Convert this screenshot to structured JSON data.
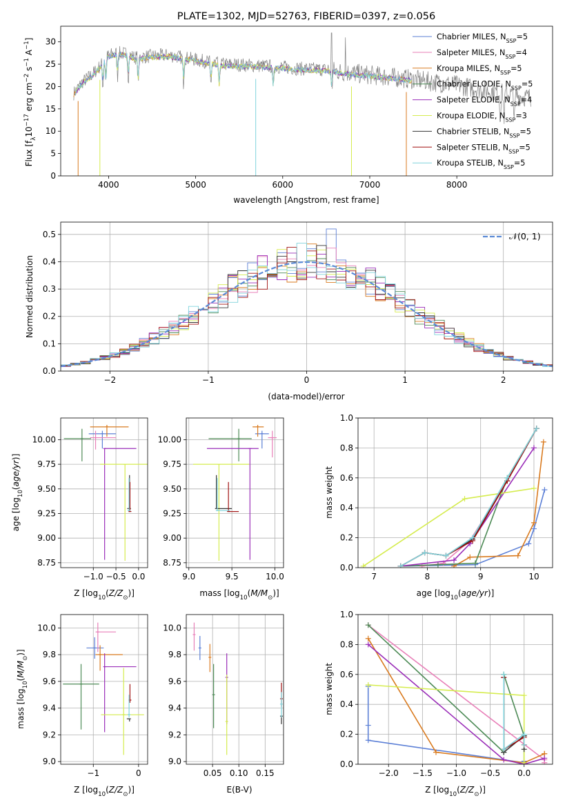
{
  "colors": {
    "Chabrier MILES": "#5b7fd6",
    "Salpeter MILES": "#e87fb8",
    "Kroupa MILES": "#d97a1e",
    "Chabrier ELODIE": "#4c8a55",
    "Salpeter ELODIE": "#9a2db8",
    "Kroupa ELODIE": "#d5ec4d",
    "Chabrier STELIB": "#333333",
    "Salpeter STELIB": "#a01010",
    "Kroupa STELIB": "#7fd3dc",
    "gaussian": "#5b8ad6"
  },
  "chart_data": [
    {
      "id": "spectrum",
      "type": "line",
      "title": "PLATE=1302, MJD=52763, FIBERID=0397, z=0.056",
      "xlabel": "wavelength [Angstrom, rest frame]",
      "ylabel": "Flux [f_λ10^-17 erg cm^-2 s^-1 A^-1]",
      "xlim": [
        3450,
        9100
      ],
      "ylim": [
        0,
        33.5
      ],
      "xticks": [
        4000,
        5000,
        6000,
        7000,
        8000
      ],
      "yticks": [
        0,
        5,
        10,
        15,
        20,
        25,
        30
      ],
      "grid": false,
      "legend_position": "upper-right",
      "legend": [
        {
          "name": "Chabrier MILES",
          "nssp": "5"
        },
        {
          "name": "Salpeter MILES",
          "nssp": "4"
        },
        {
          "name": "Kroupa MILES",
          "nssp": "5"
        },
        {
          "name": "Chabrier ELODIE",
          "nssp": "5"
        },
        {
          "name": "Salpeter ELODIE",
          "nssp": "4"
        },
        {
          "name": "Kroupa ELODIE",
          "nssp": "3"
        },
        {
          "name": "Chabrier STELIB",
          "nssp": "5"
        },
        {
          "name": "Salpeter STELIB",
          "nssp": "5"
        },
        {
          "name": "Kroupa STELIB",
          "nssp": "5"
        }
      ],
      "continuum": {
        "x": [
          3600,
          3700,
          3800,
          3900,
          4000,
          4100,
          4200,
          4300,
          4500,
          4700,
          5000,
          5300,
          5600,
          5900,
          6200,
          6500,
          6700,
          7000,
          7300,
          7500,
          8000,
          8500,
          8800
        ],
        "y": [
          18.5,
          21.0,
          22.5,
          24.5,
          27.0,
          27.5,
          27.3,
          26.5,
          26.8,
          27.0,
          26.0,
          25.0,
          24.8,
          24.5,
          24.0,
          23.8,
          23.2,
          22.6,
          22.0,
          21.6,
          20.3,
          18.6,
          17.6
        ]
      },
      "dropouts": [
        {
          "series": "Kroupa MILES",
          "x": 3650
        },
        {
          "series": "Kroupa ELODIE",
          "x": 3900
        },
        {
          "series": "Kroupa STELIB",
          "x": 5690
        },
        {
          "series": "Kroupa ELODIE",
          "x": 6790
        },
        {
          "series": "Kroupa MILES",
          "x": 7420
        }
      ]
    },
    {
      "id": "residuals",
      "type": "histogram",
      "xlabel": "(data-model)/error",
      "ylabel": "Normed distribution",
      "xlim": [
        -2.5,
        2.5
      ],
      "ylim": [
        0,
        0.545
      ],
      "xticks": [
        -2,
        -1,
        0,
        1,
        2
      ],
      "yticks": [
        0.0,
        0.1,
        0.2,
        0.3,
        0.4,
        0.5
      ],
      "grid": true,
      "legend_position": "upper-right",
      "legend": [
        {
          "name": "𝒩(0, 1)",
          "style": "dashed"
        }
      ],
      "bin_width": 0.1,
      "peak_bin": 0.25,
      "peak_value": 0.52
    },
    {
      "id": "age-vs-Z",
      "type": "errorbar",
      "xlabel": "Z [log10(Z/Z⊙)]",
      "ylabel": "age  [log10(age/yr)]",
      "xlim": [
        -1.72,
        0.2
      ],
      "ylim": [
        8.7,
        10.22
      ],
      "xticks": [
        -1,
        -0.5,
        0
      ],
      "yticks": [
        8.75,
        9.0,
        9.25,
        9.5,
        9.75,
        10.0
      ],
      "grid": true,
      "points": [
        {
          "series": "Chabrier MILES",
          "x": -0.8,
          "xerr": [
            0.3,
            0.3
          ],
          "y": 10.06,
          "yerr": [
            0.15,
            0.03
          ]
        },
        {
          "series": "Salpeter MILES",
          "x": -0.95,
          "xerr": [
            0.12,
            0.45
          ],
          "y": 10.02,
          "yerr": [
            0.12,
            0.07
          ]
        },
        {
          "series": "Kroupa MILES",
          "x": -0.7,
          "xerr": [
            0.37,
            0.48
          ],
          "y": 10.13,
          "yerr": [
            0.1,
            0.02
          ]
        },
        {
          "series": "Chabrier ELODIE",
          "x": -1.25,
          "xerr": [
            0.4,
            0.2
          ],
          "y": 10.01,
          "yerr": [
            0.23,
            0.1
          ]
        },
        {
          "series": "Salpeter ELODIE",
          "x": -0.75,
          "xerr": [
            0.0,
            0.7
          ],
          "y": 9.91,
          "yerr": [
            1.13,
            0.0
          ]
        },
        {
          "series": "Kroupa ELODIE",
          "x": -0.3,
          "xerr": [
            0.55,
            0.5
          ],
          "y": 9.75,
          "yerr": [
            0.98,
            0.0
          ]
        },
        {
          "series": "Chabrier STELIB",
          "x": -0.2,
          "xerr": [
            0.05,
            0.0
          ],
          "y": 9.3,
          "yerr": [
            0.0,
            0.34
          ]
        },
        {
          "series": "Salpeter STELIB",
          "x": -0.19,
          "xerr": [
            0.03,
            0.0
          ],
          "y": 9.27,
          "yerr": [
            0.0,
            0.3
          ]
        },
        {
          "series": "Kroupa STELIB",
          "x": -0.21,
          "xerr": [
            0.03,
            0.0
          ],
          "y": 9.28,
          "yerr": [
            0.0,
            0.33
          ]
        }
      ]
    },
    {
      "id": "age-vs-mass",
      "type": "errorbar",
      "xlabel": "mass [log10(M/M⊙)]",
      "ylabel": "",
      "xlim": [
        8.97,
        10.1
      ],
      "ylim": [
        8.7,
        10.22
      ],
      "xticks": [
        9.0,
        9.5,
        10.0
      ],
      "yticks": [
        8.75,
        9.0,
        9.25,
        9.5,
        9.75,
        10.0
      ],
      "grid": true,
      "points": [
        {
          "series": "Chabrier MILES",
          "x": 9.85,
          "xerr": [
            0.08,
            0.08
          ],
          "y": 10.06,
          "yerr": [
            0.15,
            0.03
          ]
        },
        {
          "series": "Salpeter MILES",
          "x": 9.97,
          "xerr": [
            0.05,
            0.05
          ],
          "y": 10.02,
          "yerr": [
            0.2,
            0.07
          ]
        },
        {
          "series": "Kroupa MILES",
          "x": 9.8,
          "xerr": [
            0.06,
            0.07
          ],
          "y": 10.13,
          "yerr": [
            0.1,
            0.02
          ]
        },
        {
          "series": "Chabrier ELODIE",
          "x": 9.58,
          "xerr": [
            0.35,
            0.15
          ],
          "y": 10.01,
          "yerr": [
            0.23,
            0.1
          ]
        },
        {
          "series": "Salpeter ELODIE",
          "x": 9.71,
          "xerr": [
            0.5,
            0.1
          ],
          "y": 9.91,
          "yerr": [
            1.13,
            0.0
          ]
        },
        {
          "series": "Kroupa ELODIE",
          "x": 9.35,
          "xerr": [
            0.3,
            0.35
          ],
          "y": 9.75,
          "yerr": [
            0.98,
            0.0
          ]
        },
        {
          "series": "Chabrier STELIB",
          "x": 9.32,
          "xerr": [
            0.0,
            0.18
          ],
          "y": 9.3,
          "yerr": [
            0.0,
            0.34
          ]
        },
        {
          "series": "Salpeter STELIB",
          "x": 9.46,
          "xerr": [
            0.0,
            0.12
          ],
          "y": 9.27,
          "yerr": [
            0.0,
            0.3
          ]
        },
        {
          "series": "Kroupa STELIB",
          "x": 9.33,
          "xerr": [
            0.0,
            0.15
          ],
          "y": 9.28,
          "yerr": [
            0.0,
            0.33
          ]
        }
      ]
    },
    {
      "id": "weight-vs-age",
      "type": "line",
      "xlabel": "age  [log10(age/yr)]",
      "ylabel": "mass weight",
      "xlim": [
        6.7,
        10.35
      ],
      "ylim": [
        0,
        1.0
      ],
      "xticks": [
        7,
        8,
        9,
        10
      ],
      "yticks": [
        0.0,
        0.2,
        0.4,
        0.6,
        0.8,
        1.0
      ],
      "grid": true,
      "series": [
        {
          "name": "Chabrier MILES",
          "x": [
            7.5,
            8.9,
            9.9,
            10.0,
            10.2
          ],
          "y": [
            0.01,
            0.02,
            0.16,
            0.26,
            0.52
          ]
        },
        {
          "name": "Salpeter MILES",
          "x": [
            7.9,
            8.3,
            8.8,
            9.5,
            10.05
          ],
          "y": [
            0.01,
            0.03,
            0.18,
            0.58,
            0.93
          ]
        },
        {
          "name": "Kroupa MILES",
          "x": [
            8.5,
            8.8,
            9.7,
            10.0,
            10.18
          ],
          "y": [
            0.01,
            0.07,
            0.08,
            0.3,
            0.84
          ]
        },
        {
          "name": "Chabrier ELODIE",
          "x": [
            7.5,
            8.2,
            8.9,
            9.5,
            10.05
          ],
          "y": [
            0.01,
            0.02,
            0.03,
            0.6,
            0.93
          ]
        },
        {
          "name": "Salpeter ELODIE",
          "x": [
            7.5,
            8.5,
            8.8,
            10.0
          ],
          "y": [
            0.01,
            0.05,
            0.16,
            0.8
          ]
        },
        {
          "name": "Kroupa ELODIE",
          "x": [
            6.8,
            8.7,
            10.0
          ],
          "y": [
            0.01,
            0.46,
            0.53
          ]
        },
        {
          "name": "Chabrier STELIB",
          "x": [
            7.5,
            7.95,
            8.35,
            8.85,
            9.5,
            10.05
          ],
          "y": [
            0.01,
            0.1,
            0.08,
            0.19,
            0.58,
            0.93
          ]
        },
        {
          "name": "Salpeter STELIB",
          "x": [
            7.5,
            7.95,
            8.35,
            8.85,
            9.5,
            10.05
          ],
          "y": [
            0.01,
            0.1,
            0.08,
            0.18,
            0.58,
            0.93
          ]
        },
        {
          "name": "Kroupa STELIB",
          "x": [
            7.5,
            7.95,
            8.35,
            8.85,
            9.5,
            10.05
          ],
          "y": [
            0.01,
            0.1,
            0.08,
            0.2,
            0.6,
            0.93
          ]
        }
      ]
    },
    {
      "id": "mass-vs-Z",
      "type": "errorbar",
      "xlabel": "Z [log10(Z/Z⊙)]",
      "ylabel": "mass [log10(M/M⊙)]",
      "xlim": [
        -1.72,
        0.2
      ],
      "ylim": [
        8.98,
        10.1
      ],
      "xticks": [
        -1,
        0
      ],
      "yticks": [
        9.0,
        9.2,
        9.4,
        9.6,
        9.8,
        10.0
      ],
      "grid": true,
      "points": [
        {
          "series": "Chabrier MILES",
          "x": -0.97,
          "xerr": [
            0.18,
            0.2
          ],
          "y": 9.85,
          "yerr": [
            0.08,
            0.08
          ]
        },
        {
          "series": "Salpeter MILES",
          "x": -0.9,
          "xerr": [
            0.05,
            0.4
          ],
          "y": 9.97,
          "yerr": [
            0.15,
            0.07
          ]
        },
        {
          "series": "Kroupa MILES",
          "x": -0.85,
          "xerr": [
            0.1,
            0.5
          ],
          "y": 9.8,
          "yerr": [
            0.12,
            0.07
          ]
        },
        {
          "series": "Chabrier ELODIE",
          "x": -1.27,
          "xerr": [
            0.4,
            0.4
          ],
          "y": 9.58,
          "yerr": [
            0.34,
            0.15
          ]
        },
        {
          "series": "Salpeter ELODIE",
          "x": -0.75,
          "xerr": [
            0.0,
            0.7
          ],
          "y": 9.71,
          "yerr": [
            0.49,
            0.1
          ]
        },
        {
          "series": "Kroupa ELODIE",
          "x": -0.33,
          "xerr": [
            0.5,
            0.45
          ],
          "y": 9.35,
          "yerr": [
            0.3,
            0.35
          ]
        },
        {
          "series": "Chabrier STELIB",
          "x": -0.2,
          "xerr": [
            0.06,
            0.0
          ],
          "y": 9.32,
          "yerr": [
            0.02,
            0.0
          ]
        },
        {
          "series": "Salpeter STELIB",
          "x": -0.19,
          "xerr": [
            0.03,
            0.0
          ],
          "y": 9.46,
          "yerr": [
            0.02,
            0.12
          ]
        },
        {
          "series": "Kroupa STELIB",
          "x": -0.21,
          "xerr": [
            0.03,
            0.0
          ],
          "y": 9.35,
          "yerr": [
            0.02,
            0.15
          ]
        }
      ]
    },
    {
      "id": "mass-vs-ebv",
      "type": "errorbar",
      "xlabel": "E(B-V)",
      "ylabel": "",
      "xlim": [
        0.0,
        0.185
      ],
      "ylim": [
        8.98,
        10.1
      ],
      "xticks": [
        0.05,
        0.1,
        0.15
      ],
      "yticks": [
        9.0,
        9.2,
        9.4,
        9.6,
        9.8,
        10.0
      ],
      "grid": true,
      "points": [
        {
          "series": "Chabrier MILES",
          "x": 0.026,
          "xerr": [
            0,
            0
          ],
          "y": 9.85,
          "yerr": [
            0.09,
            0.09
          ]
        },
        {
          "series": "Salpeter MILES",
          "x": 0.015,
          "xerr": [
            0,
            0
          ],
          "y": 9.95,
          "yerr": [
            0.12,
            0.09
          ]
        },
        {
          "series": "Kroupa MILES",
          "x": 0.045,
          "xerr": [
            0,
            0
          ],
          "y": 9.78,
          "yerr": [
            0.11,
            0.1
          ]
        },
        {
          "series": "Chabrier ELODIE",
          "x": 0.052,
          "xerr": [
            0,
            0
          ],
          "y": 9.5,
          "yerr": [
            0.25,
            0.23
          ]
        },
        {
          "series": "Salpeter ELODIE",
          "x": 0.077,
          "xerr": [
            0,
            0
          ],
          "y": 9.63,
          "yerr": [
            0.35,
            0.18
          ]
        },
        {
          "series": "Kroupa ELODIE",
          "x": 0.077,
          "xerr": [
            0,
            0
          ],
          "y": 9.3,
          "yerr": [
            0.25,
            0.35
          ]
        },
        {
          "series": "Chabrier STELIB",
          "x": 0.181,
          "xerr": [
            0,
            0
          ],
          "y": 9.34,
          "yerr": [
            0.06,
            0.0
          ]
        },
        {
          "series": "Salpeter STELIB",
          "x": 0.181,
          "xerr": [
            0,
            0
          ],
          "y": 9.47,
          "yerr": [
            0.06,
            0.12
          ]
        },
        {
          "series": "Kroupa STELIB",
          "x": 0.181,
          "xerr": [
            0,
            0
          ],
          "y": 9.43,
          "yerr": [
            0.1,
            0.09
          ]
        }
      ]
    },
    {
      "id": "weight-vs-Z",
      "type": "line",
      "xlabel": "Z [log10(Z/Z⊙)]",
      "ylabel": "mass weight",
      "xlim": [
        -2.45,
        0.42
      ],
      "ylim": [
        0,
        1.0
      ],
      "xticks": [
        -2.0,
        -1.5,
        -1.0,
        -0.5,
        0.0
      ],
      "yticks": [
        0.0,
        0.2,
        0.4,
        0.6,
        0.8,
        1.0
      ],
      "grid": true,
      "series": [
        {
          "name": "Chabrier MILES",
          "x": [
            -2.3,
            -2.3,
            -2.3,
            0.0,
            0.0
          ],
          "y": [
            0.52,
            0.26,
            0.16,
            0.01,
            0.02
          ]
        },
        {
          "name": "Salpeter MILES",
          "x": [
            -2.3,
            0.3,
            0.3,
            0.3
          ],
          "y": [
            0.93,
            0.03,
            0.01,
            0.01
          ]
        },
        {
          "name": "Kroupa MILES",
          "x": [
            -2.3,
            -1.3,
            0.0,
            0.3,
            0.3
          ],
          "y": [
            0.84,
            0.08,
            0.01,
            0.07,
            0.07
          ]
        },
        {
          "name": "Chabrier ELODIE",
          "x": [
            -2.3,
            -0.3,
            -0.3,
            0.0,
            0.0
          ],
          "y": [
            0.93,
            0.08,
            0.6,
            0.19,
            0.0
          ]
        },
        {
          "name": "Salpeter ELODIE",
          "x": [
            -2.3,
            -0.3,
            0.0,
            0.3
          ],
          "y": [
            0.8,
            0.03,
            0.0,
            0.04
          ]
        },
        {
          "name": "Kroupa ELODIE",
          "x": [
            -2.3,
            0.0,
            0.0
          ],
          "y": [
            0.53,
            0.46,
            0.01
          ]
        },
        {
          "name": "Chabrier STELIB",
          "x": [
            -0.3,
            -0.3,
            0.0,
            0.0
          ],
          "y": [
            0.58,
            0.08,
            0.19,
            0.1
          ]
        },
        {
          "name": "Salpeter STELIB",
          "x": [
            -0.3,
            -0.3,
            0.0,
            0.0
          ],
          "y": [
            0.58,
            0.1,
            0.18,
            0.13
          ]
        },
        {
          "name": "Kroupa STELIB",
          "x": [
            -0.3,
            -0.3,
            0.0,
            0.0
          ],
          "y": [
            0.6,
            0.1,
            0.2,
            0.13
          ]
        }
      ]
    }
  ]
}
